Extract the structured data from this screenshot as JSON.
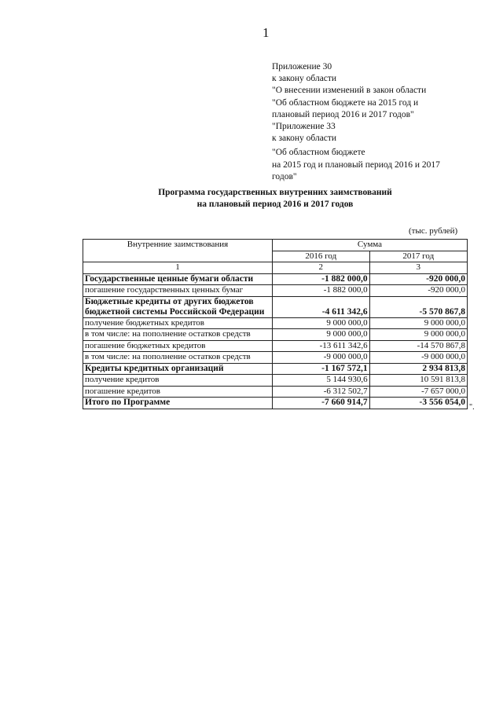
{
  "page_number": "1",
  "appendix": [
    "Приложение 30",
    "к закону области",
    "\"О внесении изменений в закон области",
    "\"Об областном бюджете на  2015 год и",
    "плановый период 2016 и 2017 годов\"",
    "\"Приложение 33",
    "к закону области",
    "\"Об областном бюджете",
    "на 2015 год и плановый период 2016 и 2017",
    "годов\""
  ],
  "title": [
    "Программа государственных внутренних заимствований",
    "на плановый период 2016 и 2017 годов"
  ],
  "units": "(тыс. рублей)",
  "table": {
    "header": {
      "col1": "Внутренние заимствования",
      "sum": "Сумма",
      "y2016": "2016 год",
      "y2017": "2017 год",
      "num1": "1",
      "num2": "2",
      "num3": "3"
    },
    "rows": [
      {
        "label": "Государственные ценные бумаги области",
        "v2016": "-1 882 000,0",
        "v2017": "-920 000,0",
        "bold": true
      },
      {
        "label": "погашение государственных ценных бумаг",
        "v2016": "-1 882 000,0",
        "v2017": "-920 000,0"
      },
      {
        "label": "Бюджетные кредиты от других бюджетов бюджетной системы Российской Федерации",
        "v2016": "-4 611 342,6",
        "v2017": "-5 570 867,8",
        "bold": true
      },
      {
        "label": "получение бюджетных кредитов",
        "v2016": "9 000 000,0",
        "v2017": "9 000 000,0"
      },
      {
        "label": "в том числе: на пополнение остатков средств",
        "v2016": "9 000 000,0",
        "v2017": "9 000 000,0"
      },
      {
        "label": "погашение бюджетных кредитов",
        "v2016": "-13 611 342,6",
        "v2017": "-14 570 867,8"
      },
      {
        "label": "в том числе: на пополнение остатков средств",
        "v2016": "-9 000 000,0",
        "v2017": "-9 000 000,0"
      },
      {
        "label": "Кредиты кредитных организаций",
        "v2016": "-1 167 572,1",
        "v2017": "2 934 813,8",
        "bold": true
      },
      {
        "label": "получение кредитов",
        "v2016": "5 144 930,6",
        "v2017": "10 591 813,8"
      },
      {
        "label": "погашение кредитов",
        "v2016": "-6 312 502,7",
        "v2017": "-7 657 000,0"
      },
      {
        "label": "Итого по Программе",
        "v2016": "-7 660 914,7",
        "v2017": "-3 556 054,0",
        "bold": true
      }
    ]
  },
  "closing_mark": "\"."
}
